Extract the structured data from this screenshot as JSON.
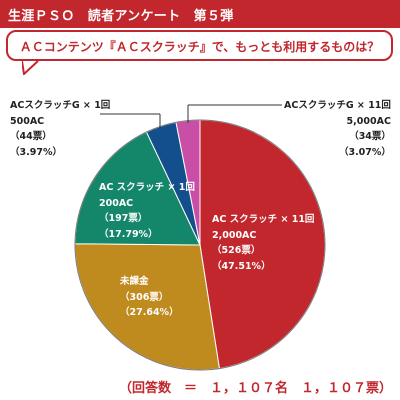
{
  "header": {
    "title": "生涯ＰＳＯ　読者アンケート　第５弾"
  },
  "question": "ＡＣコンテンツ『ＡＣスクラッチ』で、もっとも利用するものは？",
  "footer": "（回答数　＝　１，１０７名　１，１０７票）",
  "chart_data": {
    "type": "pie",
    "start_angle_deg": 0,
    "direction": "clockwise",
    "slices": [
      {
        "name": "AC スクラッチ × 11回",
        "price": "2,000AC",
        "votes": "（526票）",
        "percent": "（47.51%）",
        "value": 47.51,
        "color": "#c1272d"
      },
      {
        "name": "未課金",
        "price": "",
        "votes": "（306票）",
        "percent": "（27.64%）",
        "value": 27.64,
        "color": "#bf8a1e"
      },
      {
        "name": "AC スクラッチ × 1回",
        "price": "200AC",
        "votes": "（197票）",
        "percent": "（17.79%）",
        "value": 17.79,
        "color": "#14876a"
      },
      {
        "name": "ACスクラッチG × 1回",
        "price": "500AC",
        "votes": "（44票）",
        "percent": "（3.97%）",
        "value": 3.97,
        "color": "#124f8c"
      },
      {
        "name": "ACスクラッチG × 11回",
        "price": "5,000AC",
        "votes": "（34票）",
        "percent": "（3.07%）",
        "value": 3.07,
        "color": "#c94fa6"
      }
    ]
  }
}
